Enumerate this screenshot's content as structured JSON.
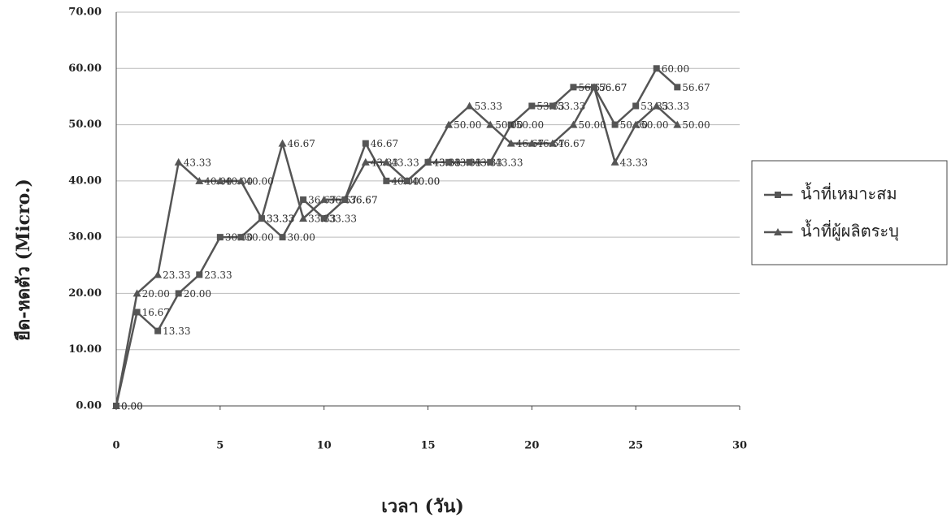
{
  "chart_data": {
    "type": "line",
    "x_label": "เวลา (วัน)",
    "y_label": "ยืด-หดตัว (Micro.)",
    "x": [
      0,
      1,
      2,
      3,
      4,
      5,
      6,
      7,
      8,
      9,
      10,
      11,
      12,
      13,
      14,
      15,
      16,
      17,
      18,
      19,
      20,
      21,
      22,
      23,
      24,
      25,
      26,
      27
    ],
    "series": [
      {
        "name": "น้ำที่เหมาะสม",
        "color": "#555555",
        "marker": "square",
        "values": [
          0,
          16.67,
          13.33,
          20,
          23.33,
          30,
          30,
          33.33,
          30,
          36.67,
          33.33,
          36.67,
          46.67,
          40,
          40,
          43.33,
          43.33,
          43.33,
          43.33,
          50,
          53.33,
          53.33,
          56.67,
          56.67,
          50,
          53.33,
          60,
          56.67
        ],
        "value_labels": [
          "0.00",
          "16.67",
          "13.33",
          "20.00",
          "23.33",
          "30.00",
          "30.00",
          "33.33",
          "30.00",
          "36.67",
          "33.33",
          "36.67",
          "46.67",
          "40.00",
          "40.00",
          "43.33",
          "43.33",
          "43.33",
          "43.33",
          "50.00",
          "53.33",
          "53.33",
          "56.67",
          "56.67",
          "50.00",
          "53.33",
          "60.00",
          "56.67"
        ]
      },
      {
        "name": "น้ำที่ผู้ผลิตระบุ",
        "color": "#555555",
        "marker": "triangle",
        "values": [
          0,
          20,
          23.33,
          43.33,
          40,
          40,
          40,
          33.33,
          46.67,
          33.33,
          36.67,
          36.67,
          43.33,
          43.33,
          40,
          43.33,
          50,
          53.33,
          50,
          46.67,
          46.67,
          46.67,
          50,
          56.67,
          43.33,
          50,
          53.33,
          50
        ],
        "value_labels": [
          "0.00",
          "20.00",
          "23.33",
          "43.33",
          "40.00",
          "40.00",
          "40.00",
          "33.33",
          "46.67",
          "33.33",
          "36.67",
          "36.67",
          "43.33",
          "43.33",
          "40.00",
          "43.33",
          "50.00",
          "53.33",
          "50.00",
          "46.67",
          "46.67",
          "46.67",
          "50.00",
          "56.67",
          "43.33",
          "50.00",
          "53.33",
          "50.00"
        ]
      }
    ],
    "xlim": [
      0,
      30
    ],
    "xticks": [
      0,
      5,
      10,
      15,
      20,
      25,
      30
    ],
    "ylim": [
      0,
      70
    ],
    "yticks": [
      {
        "value": 0,
        "label": "0.00"
      },
      {
        "value": 10,
        "label": "10.00"
      },
      {
        "value": 20,
        "label": "20.00"
      },
      {
        "value": 30,
        "label": "30.00"
      },
      {
        "value": 40,
        "label": "40.00"
      },
      {
        "value": 50,
        "label": "50.00"
      },
      {
        "value": 60,
        "label": "60.00"
      },
      {
        "value": 70,
        "label": "70.00"
      }
    ],
    "grid": true,
    "legend": "right"
  }
}
